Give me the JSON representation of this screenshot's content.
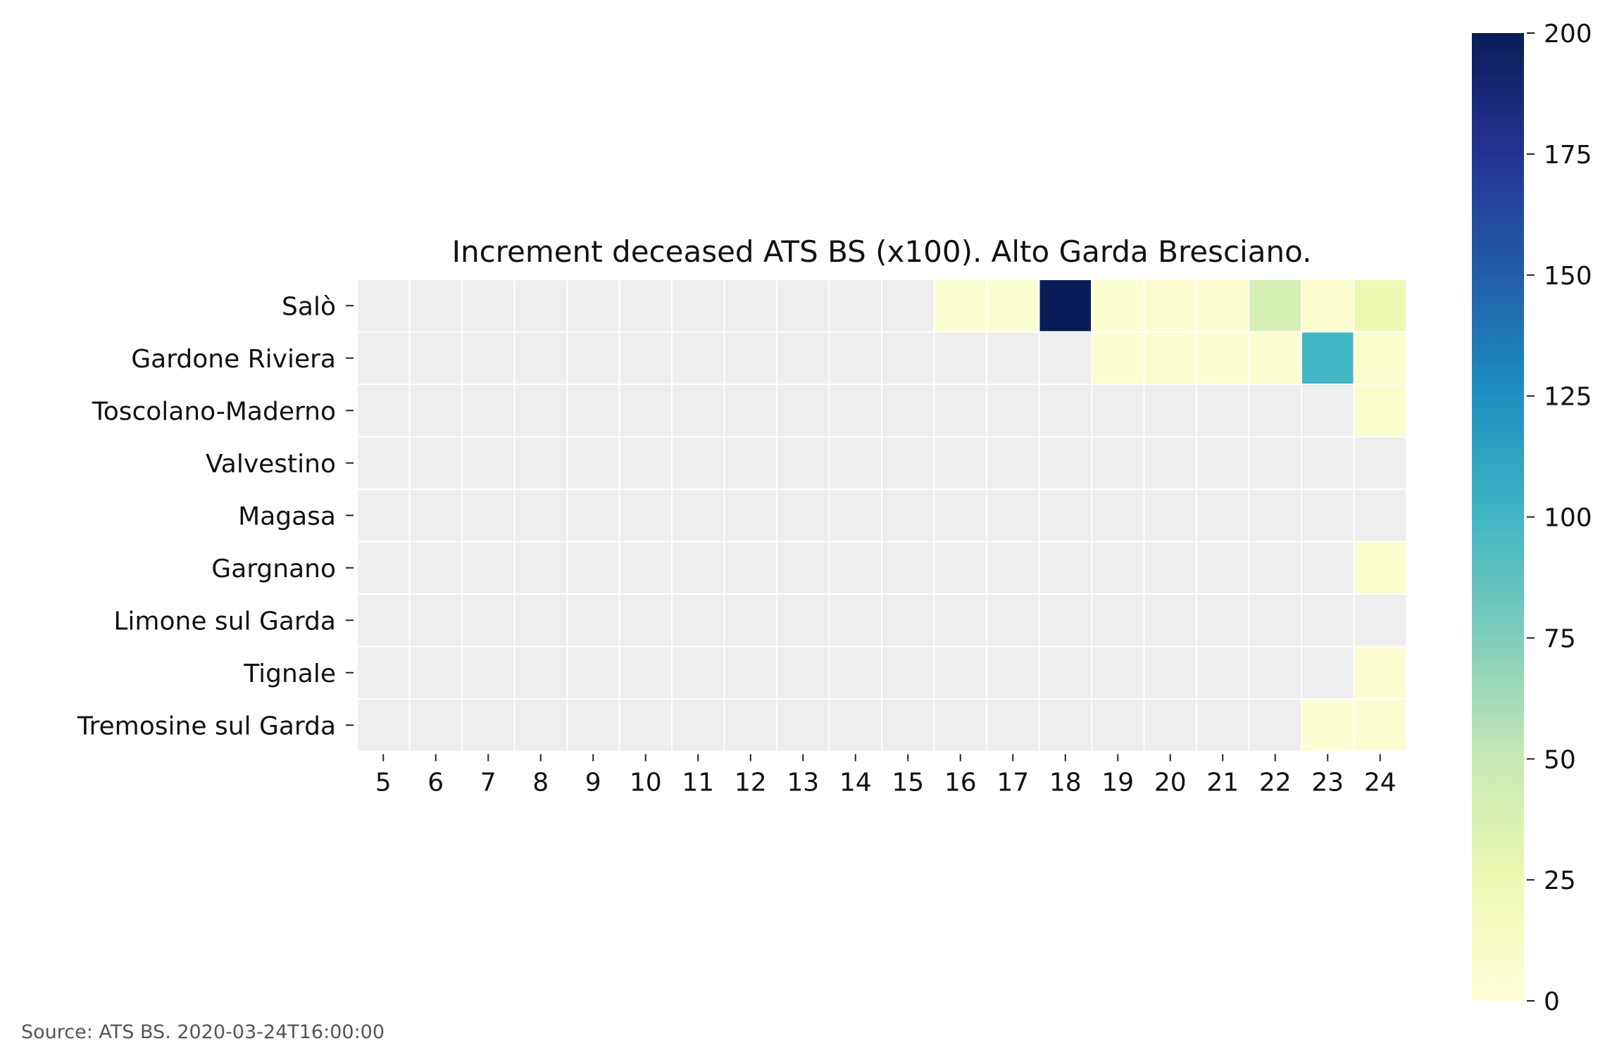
{
  "chart_data": {
    "type": "heatmap",
    "title": "Increment deceased ATS BS (x100). Alto Garda Bresciano.",
    "x_categories": [
      "5",
      "6",
      "7",
      "8",
      "9",
      "10",
      "11",
      "12",
      "13",
      "14",
      "15",
      "16",
      "17",
      "18",
      "19",
      "20",
      "21",
      "22",
      "23",
      "24"
    ],
    "y_categories": [
      "Salò",
      "Gardone Riviera",
      "Toscolano-Maderno",
      "Valvestino",
      "Magasa",
      "Gargnano",
      "Limone sul Garda",
      "Tignale",
      "Tremosine sul Garda"
    ],
    "values": [
      [
        null,
        null,
        null,
        null,
        null,
        null,
        null,
        null,
        null,
        null,
        null,
        5,
        5,
        200,
        5,
        6,
        6,
        40,
        6,
        25
      ],
      [
        null,
        null,
        null,
        null,
        null,
        null,
        null,
        null,
        null,
        null,
        null,
        null,
        null,
        null,
        5,
        6,
        5,
        6,
        100,
        8
      ],
      [
        null,
        null,
        null,
        null,
        null,
        null,
        null,
        null,
        null,
        null,
        null,
        null,
        null,
        null,
        null,
        null,
        null,
        null,
        null,
        8
      ],
      [
        null,
        null,
        null,
        null,
        null,
        null,
        null,
        null,
        null,
        null,
        null,
        null,
        null,
        null,
        null,
        null,
        null,
        null,
        null,
        null
      ],
      [
        null,
        null,
        null,
        null,
        null,
        null,
        null,
        null,
        null,
        null,
        null,
        null,
        null,
        null,
        null,
        null,
        null,
        null,
        null,
        null
      ],
      [
        null,
        null,
        null,
        null,
        null,
        null,
        null,
        null,
        null,
        null,
        null,
        null,
        null,
        null,
        null,
        null,
        null,
        null,
        null,
        8
      ],
      [
        null,
        null,
        null,
        null,
        null,
        null,
        null,
        null,
        null,
        null,
        null,
        null,
        null,
        null,
        null,
        null,
        null,
        null,
        null,
        null
      ],
      [
        null,
        null,
        null,
        null,
        null,
        null,
        null,
        null,
        null,
        null,
        null,
        null,
        null,
        null,
        null,
        null,
        null,
        null,
        null,
        6
      ],
      [
        null,
        null,
        null,
        null,
        null,
        null,
        null,
        null,
        null,
        null,
        null,
        null,
        null,
        null,
        null,
        null,
        null,
        null,
        5,
        6
      ]
    ],
    "colorscale": "YlGnBu",
    "missing_color": "#eeeeee",
    "vmin": 0,
    "vmax": 200,
    "colorbar_ticks": [
      0,
      25,
      50,
      75,
      100,
      125,
      150,
      175,
      200
    ],
    "source": "Source: ATS BS. 2020-03-24T16:00:00"
  }
}
